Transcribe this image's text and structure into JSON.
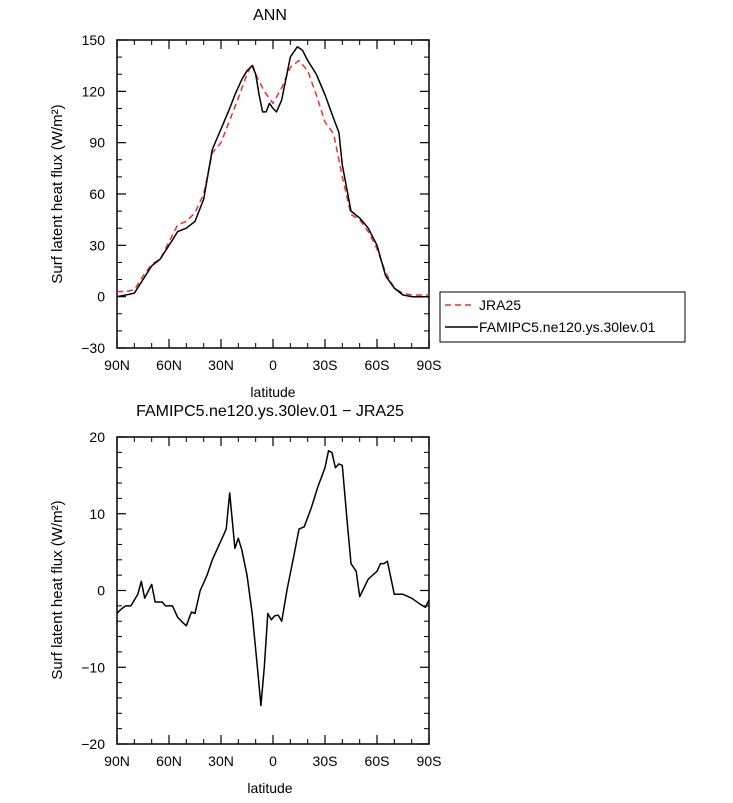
{
  "chart_data": [
    {
      "type": "line",
      "title": "ANN",
      "xlabel": "latitude",
      "ylabel": "Surf latent heat flux (W/m²)",
      "x_ticks": [
        90,
        60,
        30,
        0,
        -30,
        -60,
        -90
      ],
      "x_tick_labels": [
        "90N",
        "60N",
        "30N",
        "0",
        "30S",
        "60S",
        "90S"
      ],
      "xlim": [
        90,
        -90
      ],
      "ylim": [
        -30,
        150
      ],
      "y_ticks": [
        -30,
        0,
        30,
        60,
        90,
        120,
        150
      ],
      "y_tick_labels": [
        "−30",
        "0",
        "30",
        "60",
        "90",
        "120",
        "150"
      ],
      "legend_position": "outside-right",
      "series": [
        {
          "name": "JRA25",
          "color": "#e8312f",
          "dash": "dashed",
          "x": [
            90,
            85,
            80,
            75,
            70,
            65,
            60,
            55,
            50,
            45,
            40,
            35,
            30,
            25,
            20,
            15,
            12,
            10,
            5,
            0,
            -5,
            -10,
            -15,
            -20,
            -25,
            -30,
            -35,
            -40,
            -45,
            -50,
            -55,
            -60,
            -65,
            -70,
            -75,
            -80,
            -85,
            -90
          ],
          "y": [
            3,
            3,
            4,
            12,
            19,
            22,
            32,
            42,
            44,
            49,
            60,
            84,
            90,
            103,
            116,
            130,
            136,
            130,
            120,
            113,
            122,
            134,
            138,
            132,
            118,
            102,
            95,
            70,
            48,
            45,
            38,
            28,
            14,
            5,
            2,
            1,
            1,
            1
          ]
        },
        {
          "name": "FAMIPC5.ne120.ys.30lev.01",
          "color": "#000000",
          "dash": "solid",
          "x": [
            90,
            85,
            80,
            75,
            70,
            65,
            60,
            55,
            50,
            45,
            40,
            35,
            30,
            25,
            22,
            18,
            15,
            12,
            10,
            8,
            6,
            4,
            2,
            0,
            -2,
            -5,
            -10,
            -14,
            -17,
            -20,
            -25,
            -30,
            -35,
            -38,
            -40,
            -45,
            -50,
            -55,
            -60,
            -65,
            -70,
            -75,
            -80,
            -85,
            -90
          ],
          "y": [
            0,
            1,
            2,
            10,
            18,
            22,
            30,
            38,
            40,
            44,
            57,
            86,
            98,
            110,
            118,
            127,
            132,
            135,
            130,
            118,
            108,
            108,
            113,
            110,
            108,
            115,
            140,
            146,
            144,
            138,
            130,
            118,
            104,
            96,
            77,
            50,
            46,
            40,
            30,
            12,
            5,
            1,
            0,
            0,
            0
          ]
        }
      ]
    },
    {
      "type": "line",
      "title": "FAMIPC5.ne120.ys.30lev.01 − JRA25",
      "xlabel": "latitude",
      "ylabel": "Surf latent heat flux (W/m²)",
      "x_ticks": [
        90,
        60,
        30,
        0,
        -30,
        -60,
        -90
      ],
      "x_tick_labels": [
        "90N",
        "60N",
        "30N",
        "0",
        "30S",
        "60S",
        "90S"
      ],
      "xlim": [
        90,
        -90
      ],
      "ylim": [
        -20,
        20
      ],
      "y_ticks": [
        -20,
        -10,
        0,
        10,
        20
      ],
      "y_tick_labels": [
        "−20",
        "−10",
        "0",
        "10",
        "20"
      ],
      "series": [
        {
          "color": "#000000",
          "dash": "solid",
          "x": [
            90,
            88,
            85,
            82,
            78,
            76,
            74,
            70,
            68,
            64,
            62,
            58,
            55,
            52,
            50,
            47,
            45,
            42,
            40,
            38,
            35,
            32,
            28,
            27,
            25,
            22,
            20,
            18,
            15,
            12,
            9,
            7,
            5,
            3,
            1,
            -1,
            -3,
            -5,
            -8,
            -12,
            -15,
            -18,
            -22,
            -26,
            -30,
            -32,
            -34,
            -36,
            -38,
            -40,
            -43,
            -45,
            -48,
            -50,
            -55,
            -60,
            -62,
            -64,
            -66,
            -70,
            -75,
            -80,
            -85,
            -88,
            -90
          ],
          "y": [
            -3,
            -2.5,
            -2,
            -2,
            -0.5,
            1.2,
            -1,
            0.8,
            -1.5,
            -1.5,
            -2,
            -2,
            -3.5,
            -4.2,
            -4.6,
            -2.8,
            -3,
            0,
            1,
            2,
            4,
            5.5,
            7.5,
            8,
            12.7,
            5.5,
            6.8,
            5.3,
            2,
            -3,
            -10,
            -15,
            -10,
            -3,
            -3.8,
            -3.3,
            -3.2,
            -4,
            0,
            4.5,
            8,
            8.3,
            10.7,
            13.6,
            16,
            18.2,
            18,
            16,
            16.5,
            16.3,
            8.5,
            3.5,
            2.5,
            -0.8,
            1.5,
            2.5,
            3.5,
            3.5,
            3.8,
            -0.5,
            -0.5,
            -1,
            -1.8,
            -2.2,
            -1.2
          ]
        }
      ]
    }
  ]
}
